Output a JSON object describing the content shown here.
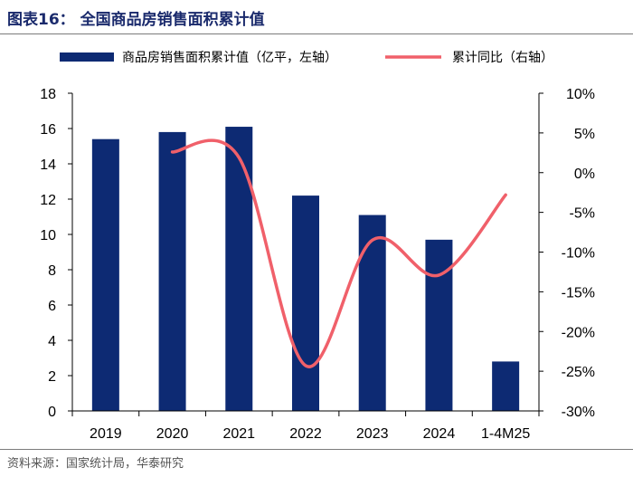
{
  "header": {
    "title": "图表16：  全国商品房销售面积累计值"
  },
  "footer": {
    "source": "资料来源：国家统计局，华泰研究"
  },
  "chart_data": {
    "type": "bar",
    "categories": [
      "2019",
      "2020",
      "2021",
      "2022",
      "2023",
      "2024",
      "1-4M25"
    ],
    "series": [
      {
        "name": "商品房销售面积累计值（亿平，左轴）",
        "type": "bar",
        "axis": "left",
        "values": [
          15.4,
          15.8,
          16.1,
          12.2,
          11.1,
          9.7,
          2.8
        ],
        "color": "#0d2a73"
      },
      {
        "name": "累计同比（右轴）",
        "type": "line",
        "axis": "right",
        "smooth": true,
        "values": [
          null,
          2.6,
          1.9,
          -24.3,
          -8.5,
          -12.9,
          -2.8
        ],
        "color": "#f0606a"
      }
    ],
    "y_left": {
      "min": 0,
      "max": 18,
      "ticks": [
        0,
        2,
        4,
        6,
        8,
        10,
        12,
        14,
        16,
        18
      ],
      "tick_labels": [
        "0",
        "2",
        "4",
        "6",
        "8",
        "10",
        "12",
        "14",
        "16",
        "18"
      ]
    },
    "y_right": {
      "min": -30,
      "max": 10,
      "ticks": [
        -30,
        -25,
        -20,
        -15,
        -10,
        -5,
        0,
        5,
        10
      ],
      "tick_labels": [
        "-30%",
        "-25%",
        "-20%",
        "-15%",
        "-10%",
        "-5%",
        "0%",
        "5%",
        "10%"
      ]
    },
    "legend_position": "top",
    "grid": false
  }
}
